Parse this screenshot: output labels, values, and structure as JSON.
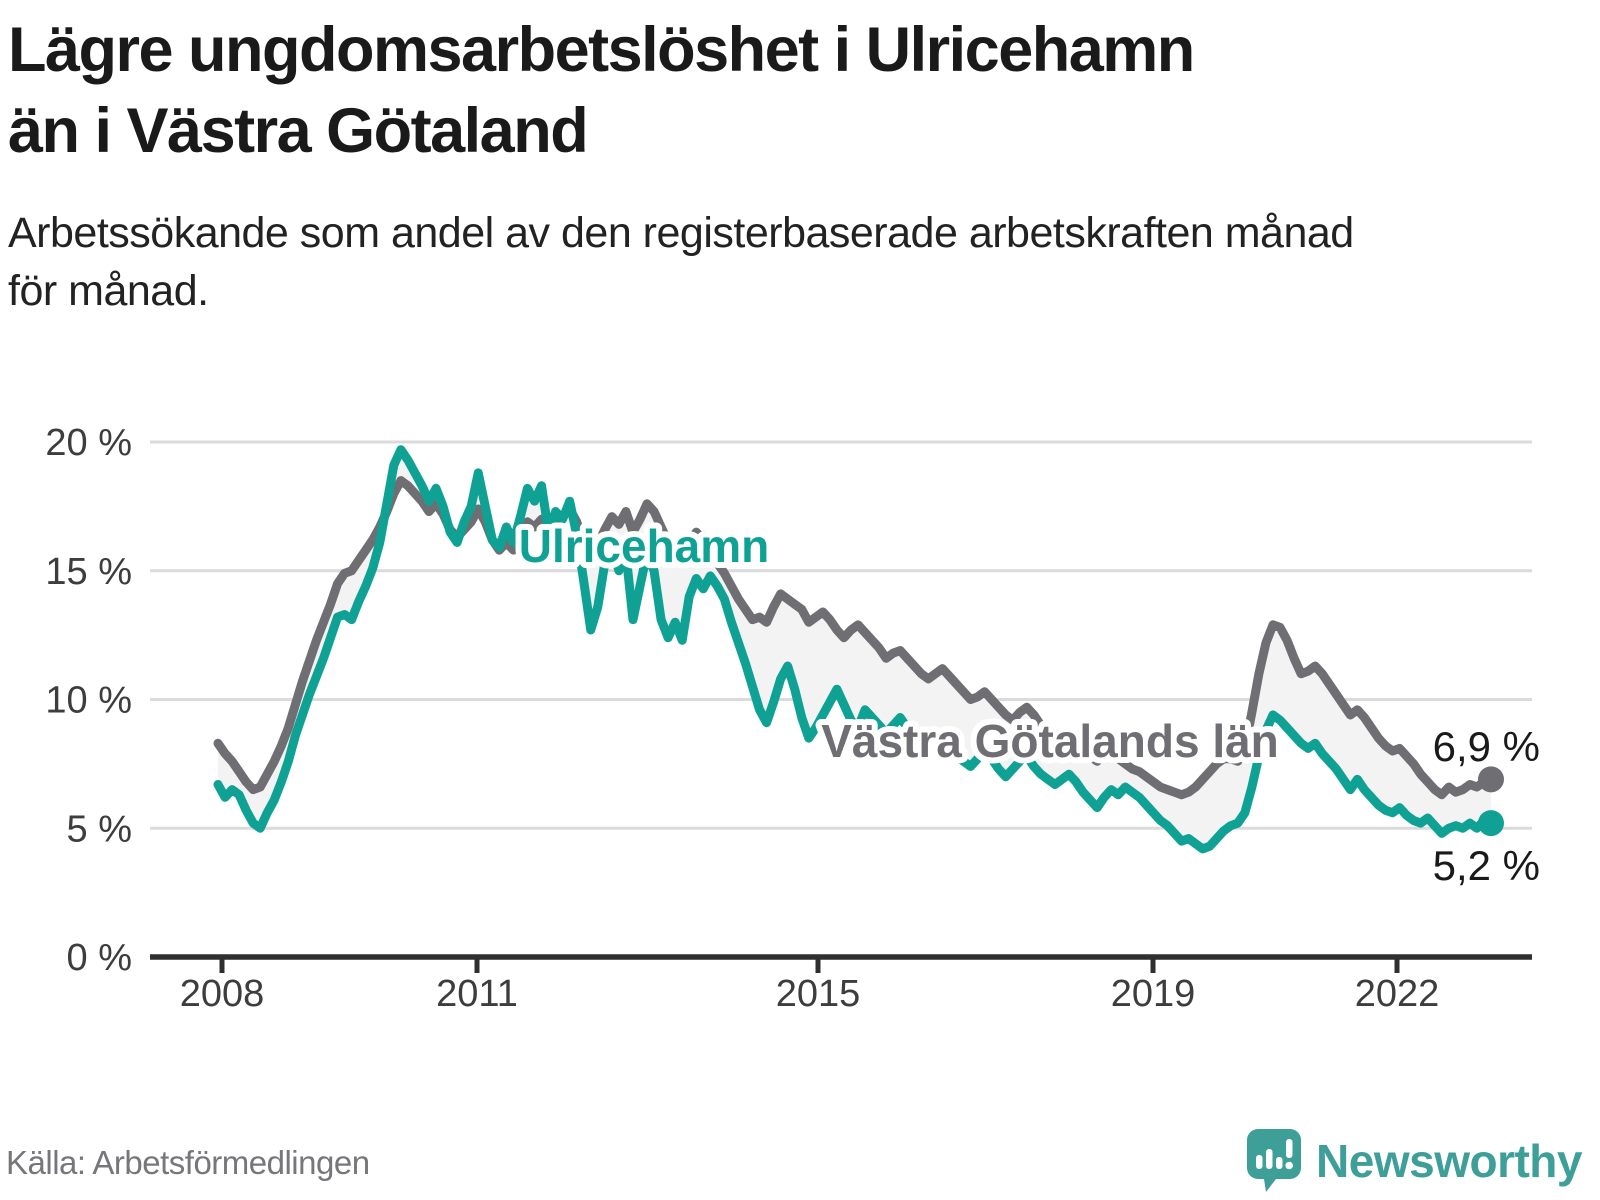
{
  "title": {
    "line1": "Lägre ungdomsarbetslöshet i Ulricehamn",
    "line2": "än i Västra Götaland"
  },
  "subtitle": {
    "line1": "Arbetssökande som andel av den registerbaserade arbetskraften månad",
    "line2": "för månad."
  },
  "source": "Källa: Arbetsförmedlingen",
  "logo": {
    "name": "Newsworthy"
  },
  "colors": {
    "ulricehamn": "#0fa294",
    "vastra_gotaland": "#6e6e73",
    "fill_between": "#f3f3f3",
    "gridline": "#dbdbdb",
    "axis": "#2f2f2f",
    "axis_label": "#3d3d3d",
    "end_label": "#1a1a1a",
    "logo_teal": "#3e9e98"
  },
  "chart_data": {
    "type": "line",
    "title": "Lägre ungdomsarbetslöshet i Ulricehamn än i Västra Götaland",
    "subtitle": "Arbetssökande som andel av den registerbaserade arbetskraften månad för månad.",
    "unit": "%",
    "x_start": "2008-01",
    "x_ticks": [
      "2008",
      "2011",
      "2015",
      "2019",
      "2022"
    ],
    "y_ticks": [
      {
        "label": "20 %",
        "value": 20
      },
      {
        "label": "15 %",
        "value": 15
      },
      {
        "label": "10 %",
        "value": 10
      },
      {
        "label": "5 %",
        "value": 5
      },
      {
        "label": "0 %",
        "value": 0
      }
    ],
    "ylim": [
      0,
      20
    ],
    "grid": true,
    "legend_position": "inline-labels",
    "series": [
      {
        "name": "Västra Götalands län",
        "color": "#6e6e73",
        "end_label": "6,9 %",
        "end_value": 6.9,
        "values": [
          8.3,
          7.9,
          7.6,
          7.2,
          6.8,
          6.5,
          6.6,
          7.1,
          7.6,
          8.2,
          8.9,
          9.8,
          10.7,
          11.5,
          12.3,
          13.0,
          13.7,
          14.5,
          14.9,
          15.0,
          15.4,
          15.8,
          16.2,
          16.7,
          17.3,
          18.0,
          18.5,
          18.3,
          18.0,
          17.7,
          17.3,
          17.6,
          17.2,
          16.6,
          16.3,
          16.6,
          16.9,
          17.4,
          16.9,
          16.2,
          15.8,
          16.1,
          15.8,
          16.3,
          16.9,
          16.7,
          17.0,
          16.4,
          16.8,
          17.1,
          17.4,
          16.9,
          16.1,
          15.6,
          16.0,
          16.6,
          17.1,
          16.8,
          17.3,
          16.5,
          17.0,
          17.6,
          17.3,
          16.7,
          16.1,
          15.8,
          15.5,
          16.1,
          16.5,
          16.2,
          15.9,
          15.3,
          14.9,
          14.4,
          13.9,
          13.5,
          13.1,
          13.2,
          13.0,
          13.6,
          14.1,
          13.9,
          13.7,
          13.5,
          13.0,
          13.2,
          13.4,
          13.1,
          12.7,
          12.4,
          12.7,
          12.9,
          12.6,
          12.3,
          12.0,
          11.6,
          11.8,
          11.9,
          11.6,
          11.3,
          11.0,
          10.8,
          11.0,
          11.2,
          10.9,
          10.6,
          10.3,
          10.0,
          10.1,
          10.3,
          10.0,
          9.7,
          9.4,
          9.2,
          9.5,
          9.7,
          9.4,
          9.0,
          8.7,
          8.4,
          8.6,
          8.7,
          8.4,
          8.1,
          7.8,
          7.6,
          7.9,
          8.0,
          7.7,
          7.5,
          7.3,
          7.2,
          7.0,
          6.8,
          6.6,
          6.5,
          6.4,
          6.3,
          6.4,
          6.6,
          6.9,
          7.2,
          7.5,
          7.7,
          7.7,
          7.6,
          8.1,
          9.5,
          11.0,
          12.2,
          12.9,
          12.8,
          12.3,
          11.6,
          11.0,
          11.1,
          11.3,
          11.0,
          10.6,
          10.2,
          9.8,
          9.4,
          9.6,
          9.3,
          8.9,
          8.5,
          8.2,
          8.0,
          8.1,
          7.8,
          7.5,
          7.1,
          6.8,
          6.5,
          6.3,
          6.6,
          6.4,
          6.5,
          6.7,
          6.6,
          6.8,
          6.9
        ]
      },
      {
        "name": "Ulricehamn",
        "color": "#0fa294",
        "end_label": "5,2 %",
        "end_value": 5.2,
        "values": [
          6.7,
          6.2,
          6.5,
          6.3,
          5.7,
          5.2,
          5.0,
          5.6,
          6.1,
          6.8,
          7.6,
          8.6,
          9.4,
          10.2,
          10.9,
          11.6,
          12.4,
          13.2,
          13.3,
          13.1,
          13.8,
          14.4,
          15.1,
          16.1,
          17.6,
          19.1,
          19.7,
          19.3,
          18.8,
          18.3,
          17.7,
          18.2,
          17.5,
          16.5,
          16.1,
          16.9,
          17.5,
          18.8,
          17.5,
          16.2,
          15.9,
          16.7,
          16.1,
          17.1,
          18.2,
          17.7,
          18.3,
          16.5,
          17.3,
          17.0,
          17.7,
          16.4,
          14.6,
          12.7,
          13.6,
          15.3,
          16.0,
          15.0,
          15.7,
          13.1,
          14.4,
          15.7,
          15.0,
          13.1,
          12.4,
          13.0,
          12.3,
          14.0,
          14.7,
          14.3,
          14.8,
          14.4,
          13.9,
          13.0,
          12.2,
          11.4,
          10.5,
          9.6,
          9.1,
          9.9,
          10.8,
          11.3,
          10.4,
          9.3,
          8.5,
          8.9,
          9.4,
          9.9,
          10.4,
          9.8,
          9.2,
          8.9,
          9.6,
          9.3,
          9.0,
          8.7,
          9.0,
          9.3,
          8.9,
          8.5,
          8.1,
          7.8,
          8.2,
          8.5,
          8.1,
          7.8,
          7.6,
          7.4,
          7.7,
          8.0,
          7.7,
          7.3,
          7.0,
          7.3,
          7.6,
          7.8,
          7.4,
          7.1,
          6.9,
          6.7,
          6.9,
          7.1,
          6.8,
          6.4,
          6.1,
          5.8,
          6.2,
          6.5,
          6.3,
          6.6,
          6.4,
          6.2,
          5.9,
          5.6,
          5.3,
          5.1,
          4.8,
          4.5,
          4.6,
          4.4,
          4.2,
          4.3,
          4.6,
          4.9,
          5.1,
          5.2,
          5.6,
          6.6,
          7.8,
          8.8,
          9.4,
          9.2,
          8.9,
          8.6,
          8.3,
          8.1,
          8.3,
          7.9,
          7.6,
          7.3,
          6.9,
          6.5,
          6.9,
          6.5,
          6.2,
          5.9,
          5.7,
          5.6,
          5.8,
          5.5,
          5.3,
          5.2,
          5.4,
          5.1,
          4.8,
          5.0,
          5.1,
          5.0,
          5.2,
          5.0,
          5.3,
          5.2
        ]
      }
    ]
  }
}
